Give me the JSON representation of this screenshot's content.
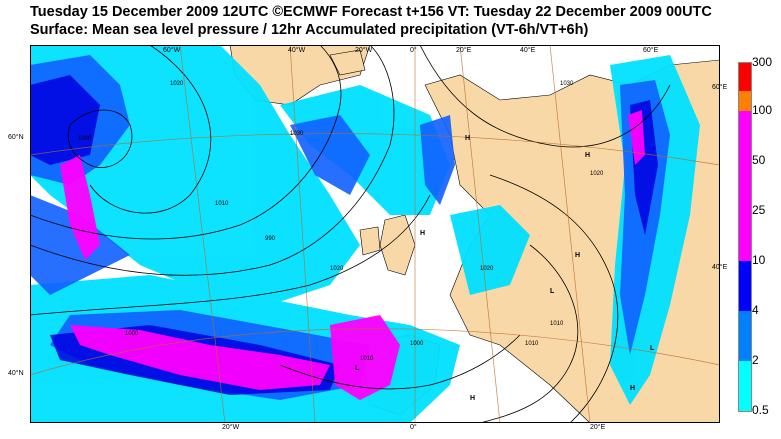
{
  "title_line1": "Tuesday 15 December 2009 12UTC ©ECMWF Forecast t+156 VT: Tuesday 22 December 2009 00UTC",
  "title_line2": "Surface: Mean sea level pressure / 12hr Accumulated precipitation (VT-6h/VT+6h)",
  "legend": {
    "labels": [
      "300",
      "100",
      "50",
      "25",
      "10",
      "4",
      "2",
      "0.5"
    ],
    "colors": [
      "#ff0000",
      "#ff8000",
      "#ff00ff",
      "#ff00ff",
      "#ff00ff",
      "#0000ff",
      "#0080ff",
      "#00ffff"
    ]
  },
  "coords": {
    "lon_top": [
      "60°W",
      "40°W",
      "20°W",
      "0°",
      "20°E",
      "40°E",
      "60°E"
    ],
    "lon_bottom": [
      "20°W",
      "0°",
      "20°E"
    ],
    "lat_left": [
      "60°N",
      "40°N"
    ],
    "lat_right": [
      "60°E",
      "40°E"
    ]
  },
  "isobar_labels": [
    "1020",
    "1010",
    "1000",
    "990",
    "1030",
    "1020",
    "1010",
    "1000",
    "1020",
    "1010",
    "1030",
    "1020",
    "1000",
    "1010"
  ],
  "centers": [
    "H",
    "H",
    "H",
    "H",
    "L",
    "L",
    "L",
    "H",
    "H"
  ]
}
